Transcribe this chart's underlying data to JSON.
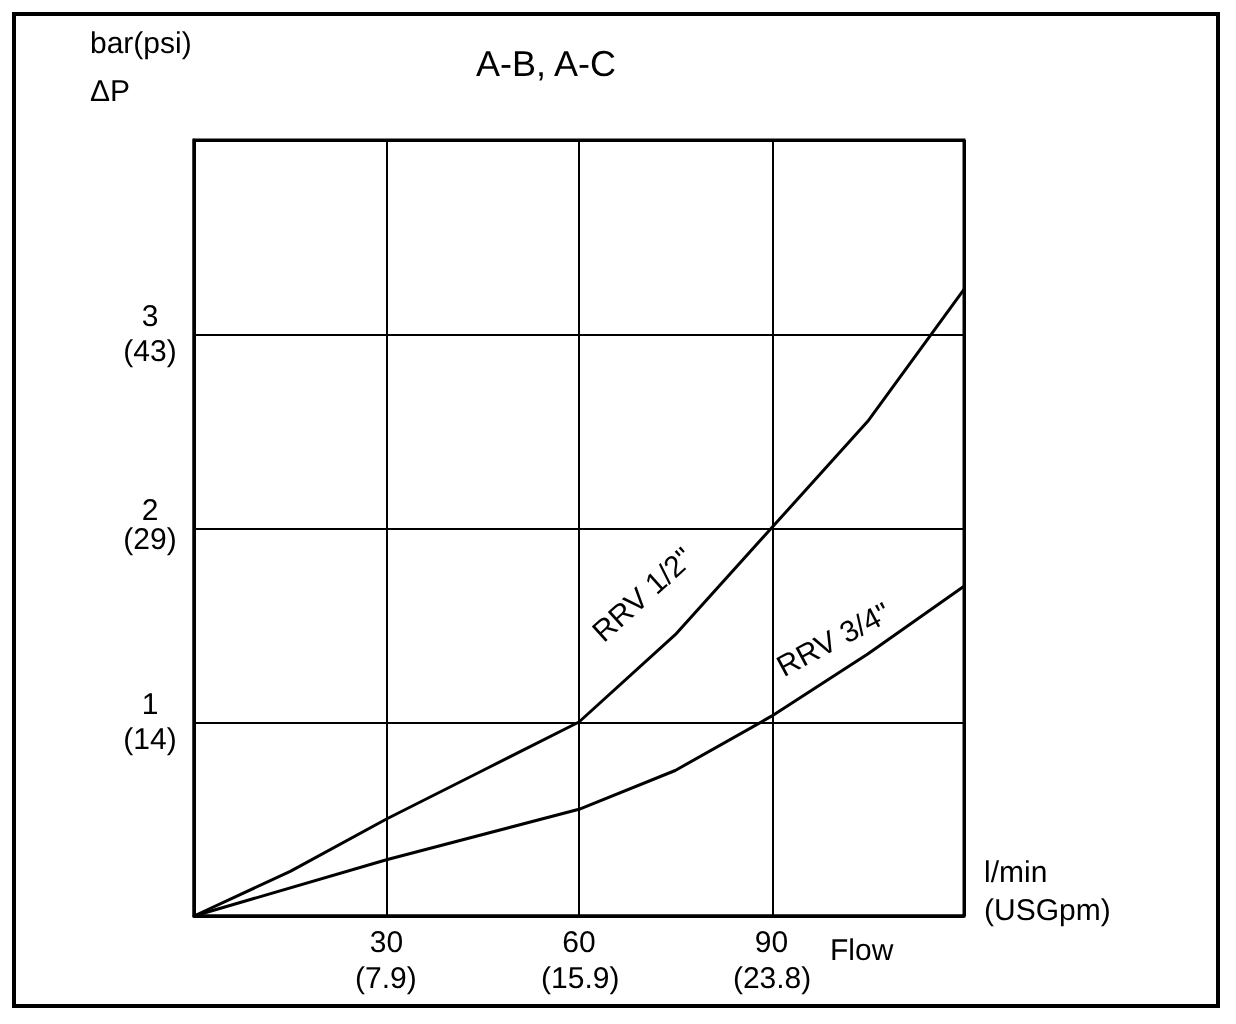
{
  "chart_data": {
    "type": "line",
    "title": "A-B, A-C",
    "xlabel": "l/min",
    "x2label": "(USGpm)",
    "y2label": "bar(psi)\nΔP",
    "annotations": [
      "Flow"
    ],
    "xlim": [
      0,
      120
    ],
    "ylim": [
      0,
      4
    ],
    "xticks": [
      30,
      60,
      90
    ],
    "x2lim": [
      0,
      31.7
    ],
    "x2ticks": [
      {
        "value": 7.9,
        "label": "(7.9)"
      },
      {
        "value": 15.9,
        "label": "(15.9)"
      },
      {
        "value": 23.8,
        "label": "(23.8)"
      }
    ],
    "yticks": [
      1,
      2,
      3
    ],
    "y2lim": [
      -0.4,
      57.6
    ],
    "y2ticks": [
      {
        "value": 14,
        "label": "(14)"
      },
      {
        "value": 29,
        "label": "(29)"
      },
      {
        "value": 43,
        "label": "(43)"
      }
    ],
    "grid": true,
    "marker": "none",
    "line_style": "solid",
    "legend": false,
    "series": [
      {
        "name": "RRV 1/2\"",
        "color": "#000000",
        "x": [
          0,
          15,
          30,
          45,
          60,
          75,
          90,
          105,
          120
        ],
        "values": [
          0,
          0.23,
          0.5,
          0.75,
          1.0,
          1.45,
          2.0,
          2.55,
          3.23
        ]
      },
      {
        "name": "RRV 3/4\"",
        "color": "#000000",
        "x": [
          0,
          30,
          60,
          75,
          90,
          105,
          120
        ],
        "values": [
          0,
          0.29,
          0.55,
          0.75,
          1.03,
          1.35,
          1.7
        ]
      }
    ]
  }
}
